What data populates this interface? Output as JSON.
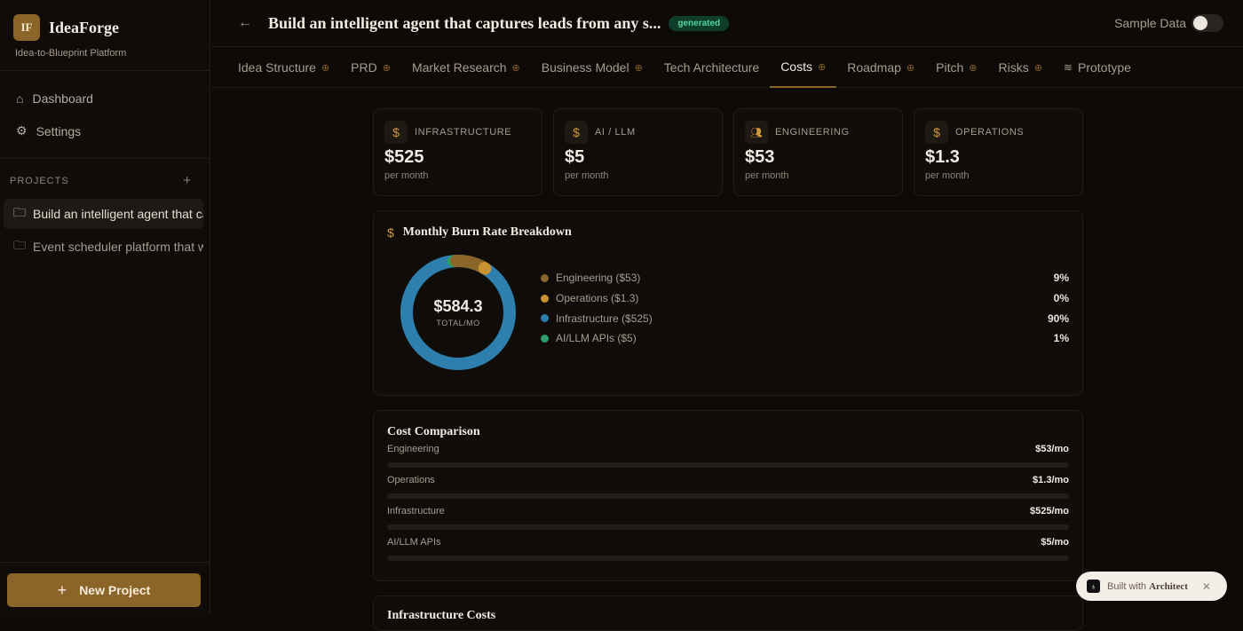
{
  "app": {
    "logo": "IF",
    "name": "IdeaForge",
    "tagline": "Idea-to-Blueprint Platform"
  },
  "sidebar": {
    "nav": [
      {
        "label": "Dashboard",
        "icon": "home-icon"
      },
      {
        "label": "Settings",
        "icon": "gear-icon"
      }
    ],
    "projects_label": "PROJECTS",
    "projects": [
      {
        "label": "Build an intelligent agent that captures leads from any s"
      },
      {
        "label": "Event scheduler platform that works"
      }
    ],
    "new_project": "New Project"
  },
  "header": {
    "title": "Build an intelligent agent that captures leads from any s...",
    "badge": "generated",
    "sample_data": "Sample Data",
    "sample_data_on": false
  },
  "tabs": [
    {
      "label": "Idea Structure",
      "globe": true
    },
    {
      "label": "PRD",
      "globe": true
    },
    {
      "label": "Market Research",
      "globe": true
    },
    {
      "label": "Business Model",
      "globe": true
    },
    {
      "label": "Tech Architecture",
      "globe": false
    },
    {
      "label": "Costs",
      "globe": true,
      "active": true
    },
    {
      "label": "Roadmap",
      "globe": true
    },
    {
      "label": "Pitch",
      "globe": true
    },
    {
      "label": "Risks",
      "globe": true
    },
    {
      "label": "Prototype",
      "icon": "layers-icon"
    }
  ],
  "kpis": [
    {
      "label": "INFRASTRUCTURE",
      "value": "$525",
      "sub": "per month",
      "icon": "dollar-icon"
    },
    {
      "label": "AI / LLM",
      "value": "$5",
      "sub": "per month",
      "icon": "dollar-icon"
    },
    {
      "label": "ENGINEERING",
      "value": "$53",
      "sub": "per month",
      "icon": "users-icon"
    },
    {
      "label": "OPERATIONS",
      "value": "$1.3",
      "sub": "per month",
      "icon": "dollar-icon"
    }
  ],
  "burn": {
    "title": "Monthly Burn Rate Breakdown",
    "total": "$584.3",
    "total_label": "TOTAL/MO",
    "items": [
      {
        "label": "Engineering ($53)",
        "pct": "9%",
        "value": 53,
        "color": "#8a6428"
      },
      {
        "label": "Operations ($1.3)",
        "pct": "0%",
        "value": 1.3,
        "color": "#c8922f"
      },
      {
        "label": "Infrastructure ($525)",
        "pct": "90%",
        "value": 525,
        "color": "#2f7fae"
      },
      {
        "label": "AI/LLM APIs ($5)",
        "pct": "1%",
        "value": 5,
        "color": "#2e9e68"
      }
    ]
  },
  "comparison": {
    "title": "Cost Comparison",
    "rows": [
      {
        "label": "Engineering",
        "value": "$53/mo",
        "fill": 0
      },
      {
        "label": "Operations",
        "value": "$1.3/mo",
        "fill": 0
      },
      {
        "label": "Infrastructure",
        "value": "$525/mo",
        "fill": 0
      },
      {
        "label": "AI/LLM APIs",
        "value": "$5/mo",
        "fill": 0
      }
    ]
  },
  "next_card": {
    "title": "Infrastructure Costs"
  },
  "toast": {
    "text": "Built with",
    "brand": "Architect"
  }
}
